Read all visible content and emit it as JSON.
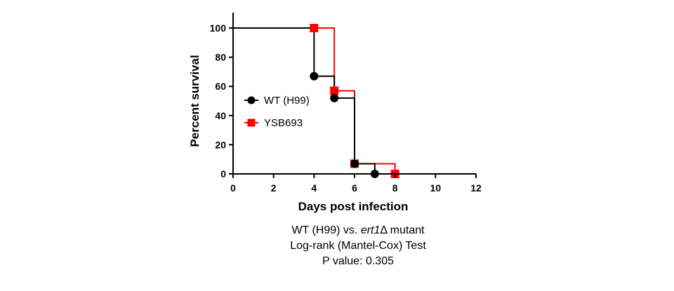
{
  "chart_data": {
    "type": "line",
    "step": true,
    "xlabel": "Days post infection",
    "ylabel": "Percent survival",
    "xlim": [
      0,
      12
    ],
    "ylim": [
      0,
      100
    ],
    "xticks": [
      "0",
      "2",
      "4",
      "6",
      "8",
      "10",
      "12"
    ],
    "yticks": [
      "0",
      "20",
      "40",
      "60",
      "80",
      "100"
    ],
    "grid": false,
    "legend_position": "center-left",
    "series": [
      {
        "name": "WT (H99)",
        "color": "#000000",
        "marker": "circle",
        "steps": [
          [
            0,
            100
          ],
          [
            4,
            67
          ],
          [
            5,
            52
          ],
          [
            6,
            7
          ],
          [
            7,
            0
          ]
        ],
        "points": [
          [
            4,
            67
          ],
          [
            5,
            52
          ],
          [
            6,
            7
          ],
          [
            7,
            0
          ]
        ]
      },
      {
        "name": "YSB693",
        "color": "#ff0000",
        "marker": "square",
        "steps": [
          [
            0,
            100
          ],
          [
            5,
            57
          ],
          [
            6,
            7
          ],
          [
            8,
            0
          ]
        ],
        "points": [
          [
            4,
            100
          ],
          [
            5,
            57
          ],
          [
            6,
            7
          ],
          [
            8,
            0
          ]
        ]
      }
    ]
  },
  "caption": {
    "line1_prefix": "WT (H99) vs. ",
    "line1_italic": "ert1",
    "line1_suffix": "Δ mutant",
    "line2": "Log-rank (Mantel-Cox) Test",
    "line3": "P value: 0.305"
  }
}
